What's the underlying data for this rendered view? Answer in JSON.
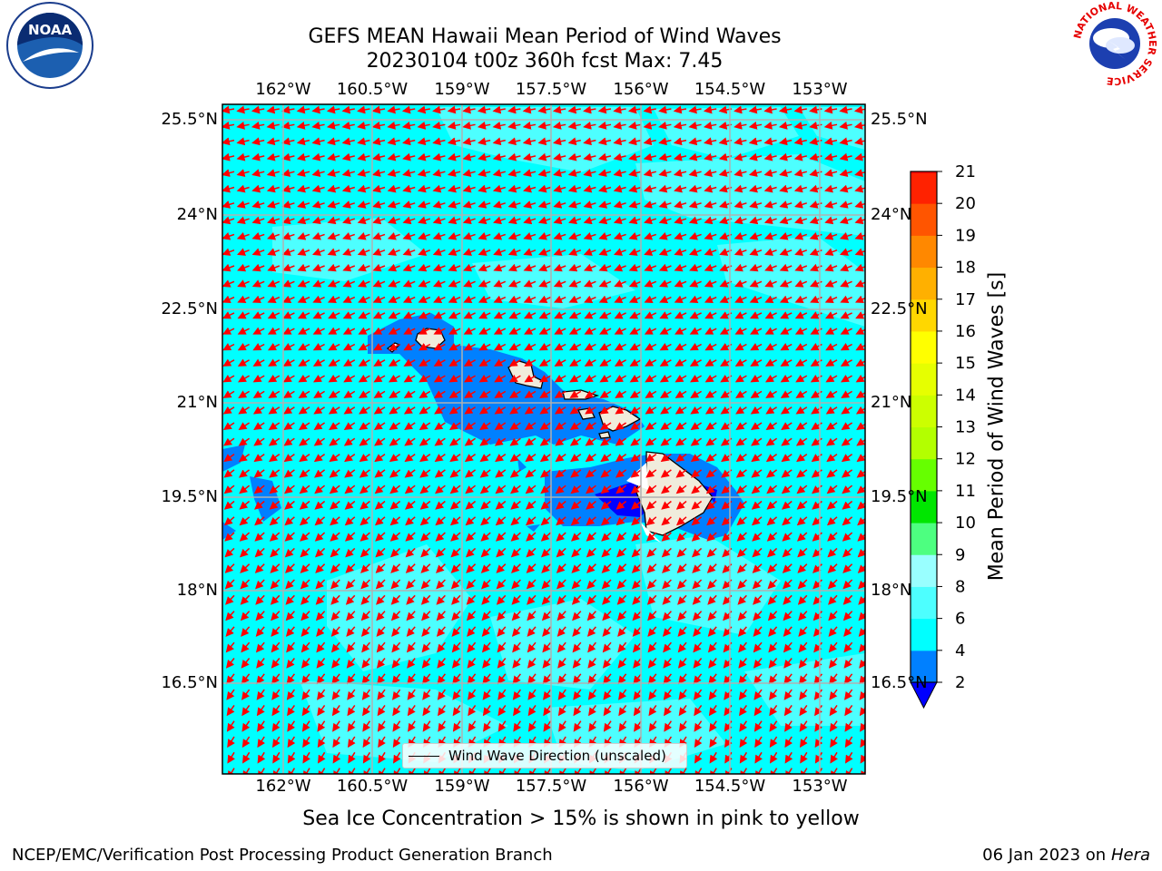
{
  "title": {
    "line1": "GEFS MEAN Hawaii Mean Period of Wind Waves",
    "line2": "20230104 t00z 360h fcst   Max: 7.45"
  },
  "map": {
    "lon_ticks": [
      "162°W",
      "160.5°W",
      "159°W",
      "157.5°W",
      "156°W",
      "154.5°W",
      "153°W"
    ],
    "lat_ticks": [
      "25.5°N",
      "24°N",
      "22.5°N",
      "21°N",
      "19.5°N",
      "18°N",
      "16.5°N"
    ],
    "legend_label": "Wind Wave Direction (unscaled)",
    "colors": {
      "ocean_main": "#00ffff",
      "ocean_light": "#4dffff",
      "near_shore": "#0080ff",
      "lee_dark": "#0000ff",
      "land": "#f0ecdc",
      "arrows": "#ff0000",
      "grid": "#b0b0b0"
    }
  },
  "colorbar": {
    "label": "Mean Period of Wind Waves [s]",
    "ticks": [
      "2",
      "4",
      "6",
      "8",
      "9",
      "10",
      "11",
      "12",
      "13",
      "14",
      "15",
      "16",
      "17",
      "18",
      "19",
      "20",
      "21"
    ],
    "colors": [
      "#0080ff",
      "#00ffff",
      "#4dffff",
      "#99ffff",
      "#4dff80",
      "#00e600",
      "#66ff00",
      "#b3ff00",
      "#ccff00",
      "#e6ff00",
      "#ffff00",
      "#ffd700",
      "#ffb000",
      "#ff8800",
      "#ff5500",
      "#ff2200"
    ],
    "extend_below_color": "#0000ff",
    "top_color": "#ff0000"
  },
  "caption": "Sea Ice Concentration > 15% is shown in pink to yellow",
  "footer": {
    "left": "NCEP/EMC/Verification Post Processing Product Generation Branch",
    "date": "06 Jan 2023 on ",
    "machine": "Hera"
  },
  "logos": {
    "noaa_text": "NOAA",
    "nws_ring": "NATIONAL WEATHER SERVICE"
  }
}
